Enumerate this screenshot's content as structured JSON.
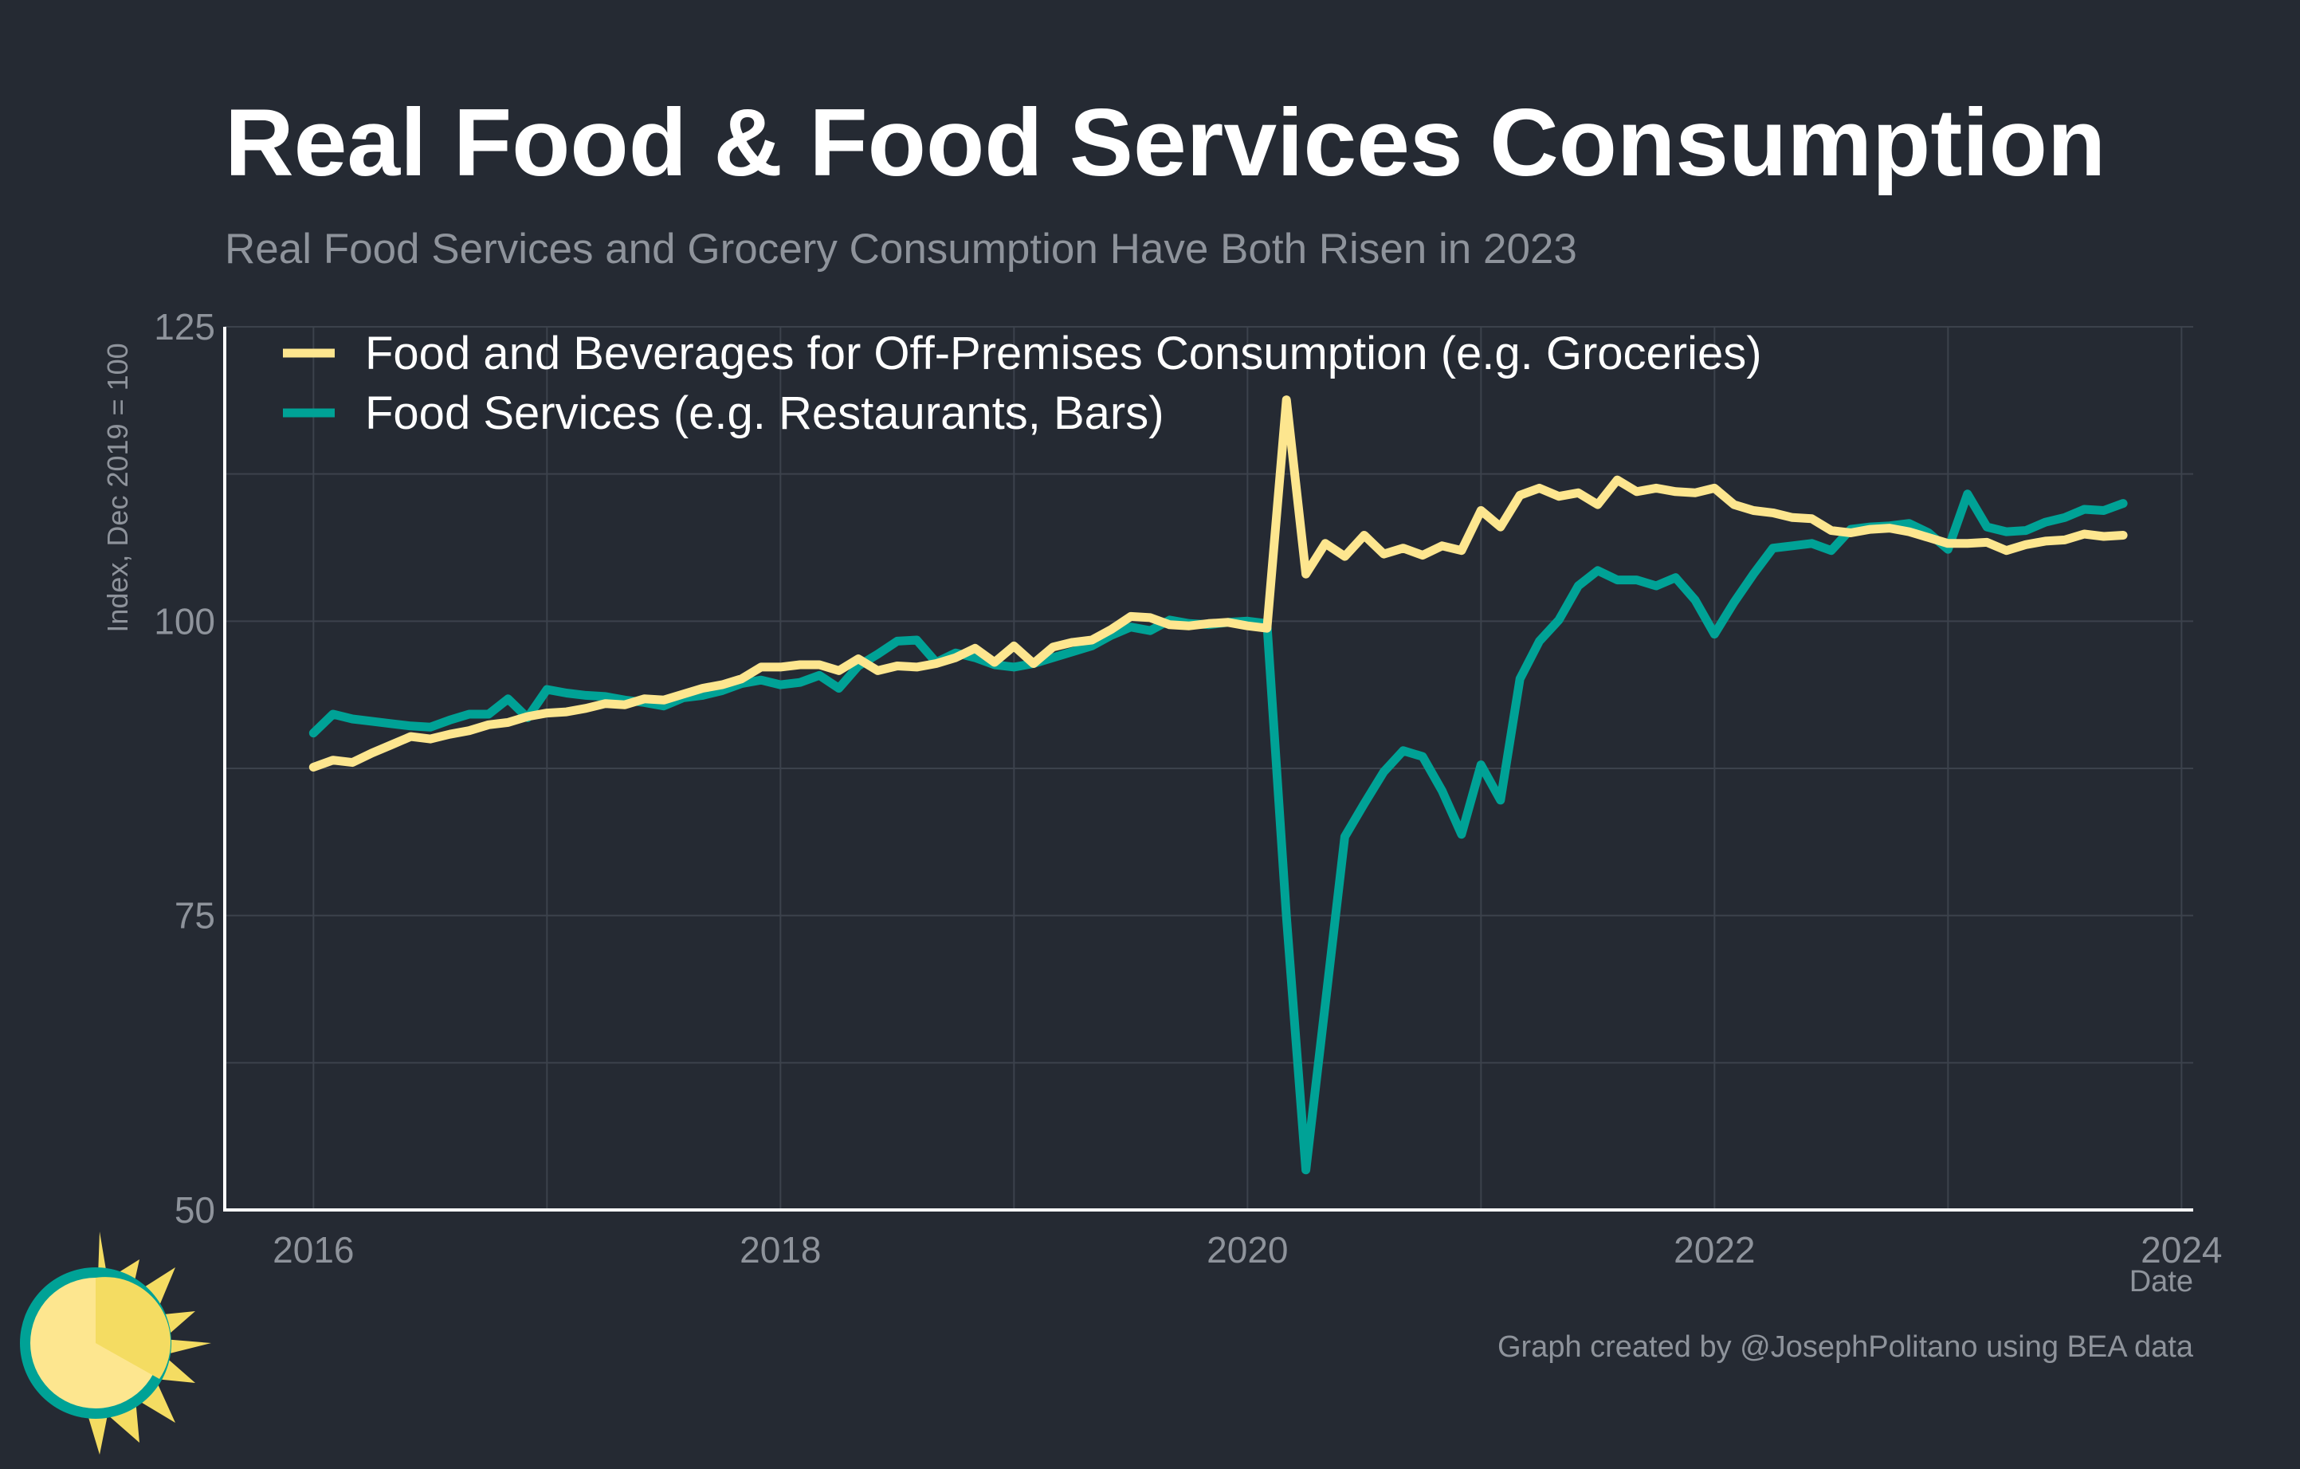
{
  "colors": {
    "background": "#252a33",
    "groceries": "#fde68f",
    "restaurants": "#00a296",
    "text_muted": "#8e939b",
    "grid": "#3c424c"
  },
  "icons": {
    "logo": "sun-icon"
  },
  "credit": "Graph created by @JosephPolitano using BEA data",
  "chart_data": {
    "type": "line",
    "title": "Real Food & Food Services Consumption",
    "subtitle": "Real Food Services and Grocery Consumption Have Both Risen in 2023",
    "xlabel": "Date",
    "ylabel": "Index, Dec 2019 = 100",
    "xlim": [
      2015.62,
      2024.05
    ],
    "ylim": [
      50,
      125
    ],
    "x_ticks": [
      2016,
      2018,
      2020,
      2022,
      2024
    ],
    "x_tick_labels": [
      "2016",
      "2018",
      "2020",
      "2022",
      "2024"
    ],
    "y_ticks": [
      50,
      75,
      100,
      125
    ],
    "y_tick_labels": [
      "50",
      "75",
      "100",
      "125"
    ],
    "y_minor_grid": [
      62.5,
      87.5,
      112.5
    ],
    "x_minor_grid": [
      2017,
      2019,
      2021,
      2023
    ],
    "grid": true,
    "legend_position": "top-left",
    "x_start": 2016.0,
    "x_step": 0.083333,
    "series": [
      {
        "name": "Food and Beverages for Off-Premises Consumption (e.g. Groceries)",
        "color": "#fde68f",
        "values": [
          87.6,
          88.2,
          88.0,
          88.8,
          89.5,
          90.2,
          90.0,
          90.4,
          90.7,
          91.2,
          91.4,
          91.9,
          92.2,
          92.3,
          92.6,
          93.0,
          92.9,
          93.4,
          93.3,
          93.8,
          94.3,
          94.6,
          95.1,
          96.1,
          96.1,
          96.3,
          96.3,
          95.8,
          96.8,
          95.8,
          96.2,
          96.1,
          96.4,
          96.9,
          97.7,
          96.5,
          97.9,
          96.4,
          97.8,
          98.2,
          98.4,
          99.3,
          100.4,
          100.3,
          99.7,
          99.6,
          99.8,
          99.9,
          99.6,
          99.4,
          118.8,
          104.0,
          106.6,
          105.5,
          107.3,
          105.7,
          106.2,
          105.6,
          106.4,
          106.0,
          109.4,
          108.0,
          110.7,
          111.3,
          110.6,
          110.9,
          109.9,
          112.0,
          111.0,
          111.3,
          111.0,
          110.9,
          111.3,
          109.9,
          109.4,
          109.2,
          108.8,
          108.7,
          107.7,
          107.5,
          107.8,
          107.9,
          107.6,
          107.1,
          106.6,
          106.6,
          106.7,
          106.0,
          106.5,
          106.8,
          106.9,
          107.4,
          107.2,
          107.3
        ]
      },
      {
        "name": "Food Services (e.g. Restaurants, Bars)",
        "color": "#00a296",
        "values": [
          90.5,
          92.1,
          91.7,
          91.5,
          91.3,
          91.1,
          91.0,
          91.6,
          92.1,
          92.1,
          93.4,
          91.8,
          94.2,
          93.9,
          93.7,
          93.6,
          93.3,
          93.1,
          92.8,
          93.5,
          93.7,
          94.1,
          94.7,
          95.0,
          94.6,
          94.8,
          95.4,
          94.3,
          96.2,
          97.2,
          98.3,
          98.4,
          96.5,
          97.3,
          96.9,
          96.3,
          96.1,
          96.4,
          96.9,
          97.4,
          97.9,
          98.8,
          99.5,
          99.2,
          100.1,
          99.8,
          99.7,
          99.9,
          100.0,
          99.8,
          74.9,
          53.4,
          67.5,
          81.7,
          84.5,
          87.2,
          89.0,
          88.5,
          85.6,
          81.9,
          87.8,
          84.8,
          95.1,
          98.3,
          100.1,
          103.0,
          104.3,
          103.5,
          103.5,
          103.0,
          103.7,
          101.8,
          98.9,
          101.6,
          104.0,
          106.2,
          106.4,
          106.6,
          106.0,
          107.8,
          108.0,
          108.1,
          108.3,
          107.5,
          106.1,
          110.8,
          108.0,
          107.6,
          107.7,
          108.4,
          108.8,
          109.5,
          109.4,
          110.0
        ]
      }
    ]
  }
}
